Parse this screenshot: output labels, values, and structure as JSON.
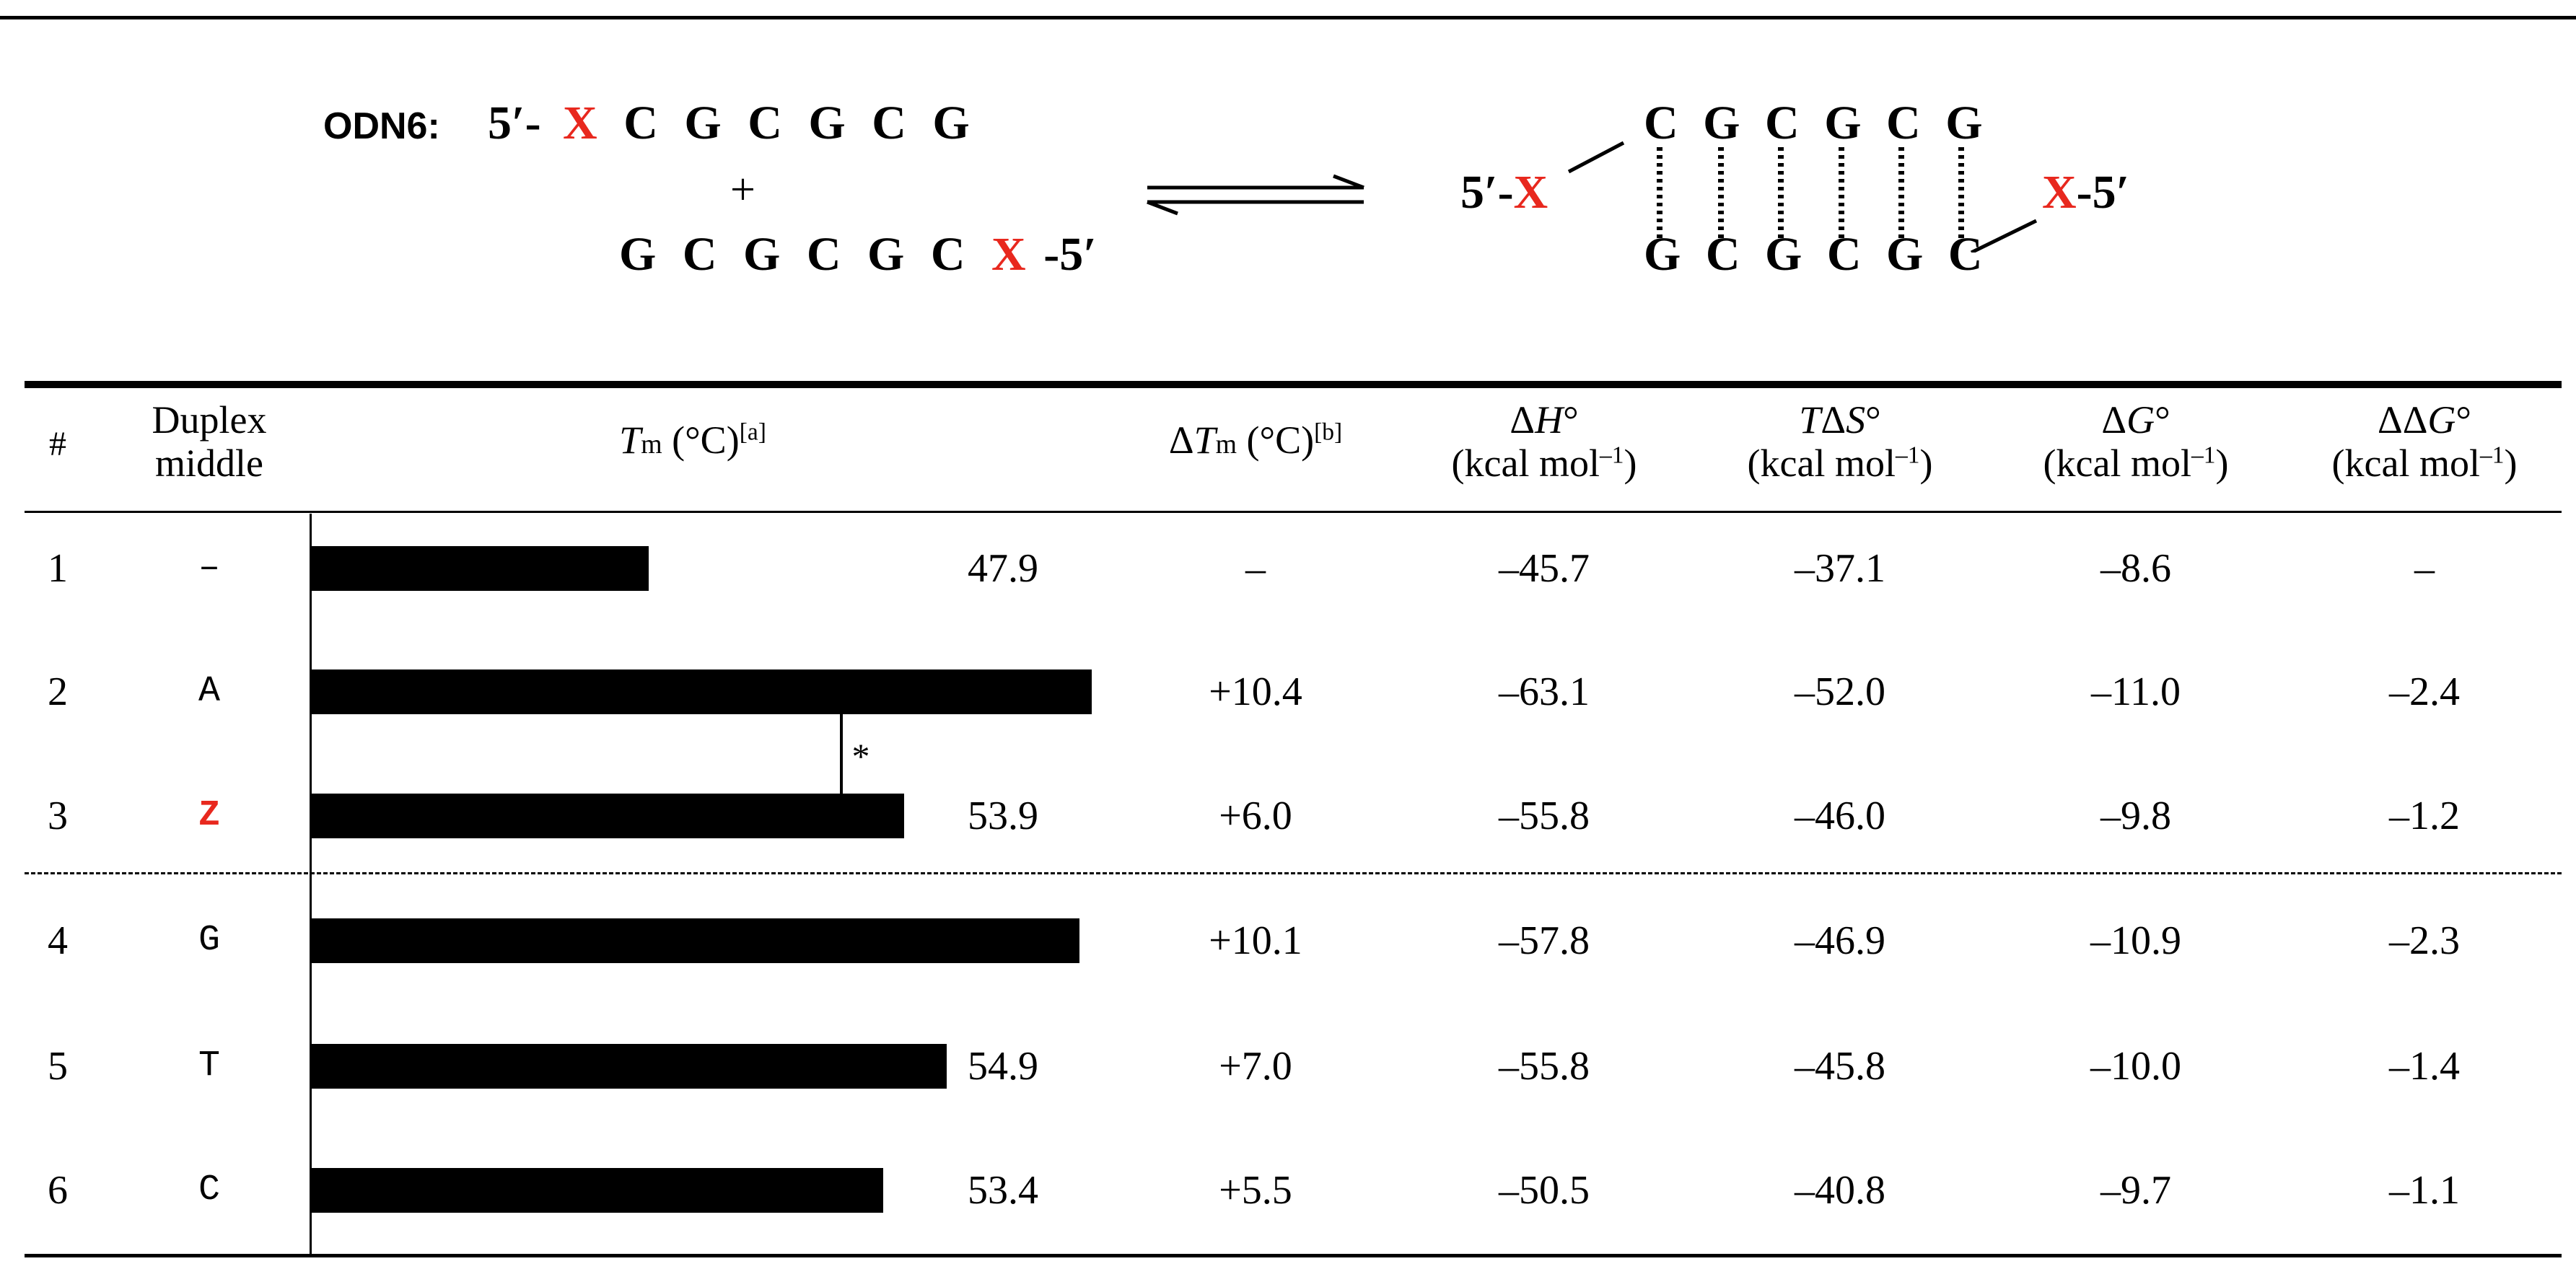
{
  "scheme": {
    "label": "ODN6:",
    "top_strand": {
      "prime5": "5′-",
      "x": "X",
      "bases": [
        "C",
        "G",
        "C",
        "G",
        "C",
        "G"
      ]
    },
    "plus": "+",
    "bottom_strand": {
      "bases": [
        "G",
        "C",
        "G",
        "C",
        "G",
        "C"
      ],
      "x": "X",
      "prime5": "-5′"
    },
    "product": {
      "left_label_prime": "5′-",
      "left_label_x": "X",
      "top_bases": [
        "C",
        "G",
        "C",
        "G",
        "C",
        "G"
      ],
      "bottom_bases": [
        "G",
        "C",
        "G",
        "C",
        "G",
        "C"
      ],
      "right_label_x": "X",
      "right_label_prime": "-5′"
    }
  },
  "table": {
    "headers": {
      "num": "#",
      "duplex_line1": "Duplex",
      "duplex_line2": "middle",
      "tm_T": "T",
      "tm_m": "m",
      "tm_rest": " (°C)",
      "tm_note": "[a]",
      "dtm_D": "Δ",
      "dtm_T": "T",
      "dtm_m": "m",
      "dtm_rest": " (°C)",
      "dtm_note": "[b]",
      "dh_line1_pre": "Δ",
      "dh_line1_var": "H",
      "dh_line1_post": "°",
      "ts_line1_var": "T",
      "ts_line1_mid": "Δ",
      "ts_line1_var2": "S",
      "ts_line1_post": "°",
      "dg_line1_pre": "Δ",
      "dg_line1_var": "G",
      "dg_line1_post": "°",
      "ddg_line1_pre": "ΔΔ",
      "ddg_line1_var": "G",
      "ddg_line1_post": "°",
      "unit_pre": "(kcal mol",
      "unit_sup": "–1",
      "unit_post": ")"
    },
    "significance_mark": "*",
    "rows": [
      {
        "num": "1",
        "middle": "–",
        "tm": 47.9,
        "tm_text": "47.9",
        "dtm": "–",
        "dh": "–45.7",
        "tds": "–37.1",
        "dg": "–8.6",
        "ddg": "–",
        "middle_color": "#000000"
      },
      {
        "num": "2",
        "middle": "A",
        "tm": 58.3,
        "tm_text": "58.3",
        "dtm": "+10.4",
        "dh": "–63.1",
        "tds": "–52.0",
        "dg": "–11.0",
        "ddg": "–2.4",
        "middle_color": "#000000"
      },
      {
        "num": "3",
        "middle": "Z",
        "tm": 53.9,
        "tm_text": "53.9",
        "dtm": "+6.0",
        "dh": "–55.8",
        "tds": "–46.0",
        "dg": "–9.8",
        "ddg": "–1.2",
        "middle_color": "#e8281e"
      },
      {
        "num": "4",
        "middle": "G",
        "tm": 58.0,
        "tm_text": "58.0",
        "dtm": "+10.1",
        "dh": "–57.8",
        "tds": "–46.9",
        "dg": "–10.9",
        "ddg": "–2.3",
        "middle_color": "#000000"
      },
      {
        "num": "5",
        "middle": "T",
        "tm": 54.9,
        "tm_text": "54.9",
        "dtm": "+7.0",
        "dh": "–55.8",
        "tds": "–45.8",
        "dg": "–10.0",
        "ddg": "–1.4",
        "middle_color": "#000000"
      },
      {
        "num": "6",
        "middle": "C",
        "tm": 53.4,
        "tm_text": "53.4",
        "dtm": "+5.5",
        "dh": "–50.5",
        "tds": "–40.8",
        "dg": "–9.7",
        "ddg": "–1.1",
        "middle_color": "#000000"
      }
    ]
  },
  "chart_data": {
    "type": "bar",
    "orientation": "horizontal",
    "categories": [
      "–",
      "A",
      "Z",
      "G",
      "T",
      "C"
    ],
    "values": [
      47.9,
      58.3,
      53.9,
      58.0,
      54.9,
      53.4
    ],
    "xlim": [
      40,
      62
    ],
    "grid": false,
    "bar_color": "#000000"
  },
  "colors": {
    "accent_red": "#e8281e",
    "ink": "#000000",
    "background": "#ffffff"
  }
}
